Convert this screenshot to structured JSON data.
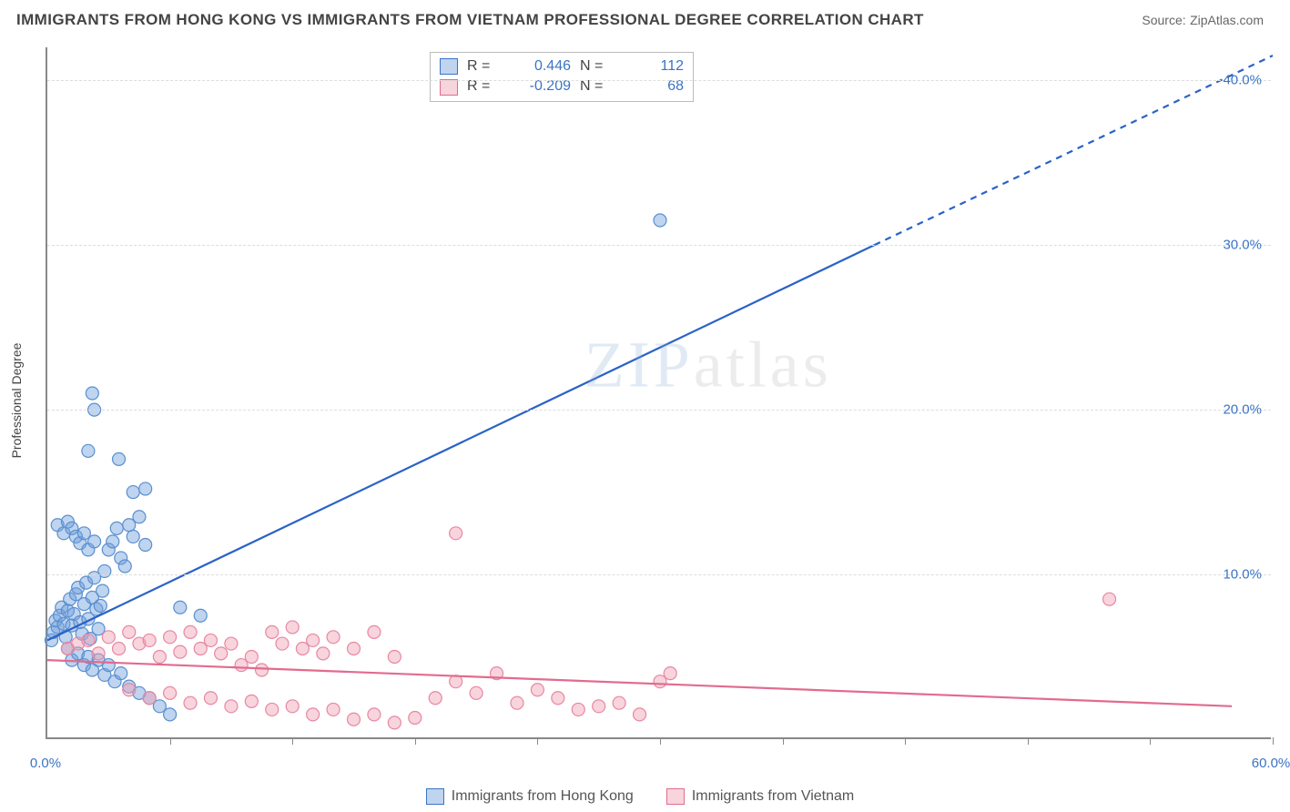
{
  "title": "IMMIGRANTS FROM HONG KONG VS IMMIGRANTS FROM VIETNAM PROFESSIONAL DEGREE CORRELATION CHART",
  "source_label": "Source:",
  "source_value": "ZipAtlas.com",
  "ylabel": "Professional Degree",
  "watermark_pre": "ZIP",
  "watermark_post": "atlas",
  "chart": {
    "type": "scatter-with-trendlines",
    "background_color": "#ffffff",
    "grid_color": "#dddddd",
    "axis_color": "#888888",
    "xlim": [
      0,
      60
    ],
    "ylim": [
      0,
      42
    ],
    "xtick_labels": [
      "0.0%",
      "60.0%"
    ],
    "xtick_positions": [
      0,
      60
    ],
    "ytick_labels": [
      "10.0%",
      "20.0%",
      "30.0%",
      "40.0%"
    ],
    "ytick_positions": [
      10,
      20,
      30,
      40
    ],
    "vtick_positions": [
      6,
      12,
      18,
      24,
      30,
      36,
      42,
      48,
      54,
      60
    ],
    "series": [
      {
        "name": "Immigrants from Hong Kong",
        "legend_label": "Immigrants from Hong Kong",
        "color_fill": "rgba(110,160,220,0.45)",
        "color_stroke": "#5a8fd0",
        "marker_radius": 7,
        "trend": {
          "solid": [
            [
              0,
              6
            ],
            [
              40.5,
              30
            ]
          ],
          "dashed": [
            [
              40.5,
              30
            ],
            [
              60,
              41.5
            ]
          ],
          "color": "#2a62c8",
          "width": 2.2
        },
        "stats": {
          "R": "0.446",
          "N": "112"
        },
        "points": [
          [
            0.2,
            6.0
          ],
          [
            0.3,
            6.5
          ],
          [
            0.4,
            7.2
          ],
          [
            0.5,
            6.8
          ],
          [
            0.6,
            7.5
          ],
          [
            0.7,
            8.0
          ],
          [
            0.8,
            7.0
          ],
          [
            0.9,
            6.2
          ],
          [
            1.0,
            7.8
          ],
          [
            1.1,
            8.5
          ],
          [
            1.2,
            6.9
          ],
          [
            1.3,
            7.6
          ],
          [
            1.4,
            8.8
          ],
          [
            1.5,
            9.2
          ],
          [
            1.6,
            7.1
          ],
          [
            1.7,
            6.4
          ],
          [
            1.8,
            8.2
          ],
          [
            1.9,
            9.5
          ],
          [
            2.0,
            7.3
          ],
          [
            2.1,
            6.1
          ],
          [
            2.2,
            8.6
          ],
          [
            2.3,
            9.8
          ],
          [
            2.4,
            7.9
          ],
          [
            2.5,
            6.7
          ],
          [
            2.6,
            8.1
          ],
          [
            2.7,
            9.0
          ],
          [
            2.8,
            10.2
          ],
          [
            3.0,
            11.5
          ],
          [
            3.2,
            12.0
          ],
          [
            3.4,
            12.8
          ],
          [
            3.6,
            11.0
          ],
          [
            3.8,
            10.5
          ],
          [
            4.0,
            13.0
          ],
          [
            4.2,
            12.3
          ],
          [
            4.5,
            13.5
          ],
          [
            4.8,
            11.8
          ],
          [
            1.0,
            5.5
          ],
          [
            1.2,
            4.8
          ],
          [
            1.5,
            5.2
          ],
          [
            1.8,
            4.5
          ],
          [
            2.0,
            5.0
          ],
          [
            2.2,
            4.2
          ],
          [
            2.5,
            4.8
          ],
          [
            2.8,
            3.9
          ],
          [
            3.0,
            4.5
          ],
          [
            3.3,
            3.5
          ],
          [
            3.6,
            4.0
          ],
          [
            4.0,
            3.2
          ],
          [
            4.5,
            2.8
          ],
          [
            5.0,
            2.5
          ],
          [
            5.5,
            2.0
          ],
          [
            6.0,
            1.5
          ],
          [
            6.5,
            8.0
          ],
          [
            7.5,
            7.5
          ],
          [
            2.0,
            17.5
          ],
          [
            2.2,
            21.0
          ],
          [
            2.3,
            20.0
          ],
          [
            3.5,
            17.0
          ],
          [
            4.2,
            15.0
          ],
          [
            4.8,
            15.2
          ],
          [
            0.5,
            13.0
          ],
          [
            0.8,
            12.5
          ],
          [
            1.0,
            13.2
          ],
          [
            1.2,
            12.8
          ],
          [
            1.4,
            12.3
          ],
          [
            1.6,
            11.9
          ],
          [
            1.8,
            12.5
          ],
          [
            2.0,
            11.5
          ],
          [
            2.3,
            12.0
          ],
          [
            30.0,
            31.5
          ]
        ]
      },
      {
        "name": "Immigrants from Vietnam",
        "legend_label": "Immigrants from Vietnam",
        "color_fill": "rgba(240,160,180,0.45)",
        "color_stroke": "#e887a3",
        "marker_radius": 7,
        "trend": {
          "solid": [
            [
              0,
              4.8
            ],
            [
              58,
              2.0
            ]
          ],
          "dashed": null,
          "color": "#e26b8e",
          "width": 2.2
        },
        "stats": {
          "R": "-0.209",
          "N": "68"
        },
        "points": [
          [
            1.0,
            5.5
          ],
          [
            1.5,
            5.8
          ],
          [
            2.0,
            6.0
          ],
          [
            2.5,
            5.2
          ],
          [
            3.0,
            6.2
          ],
          [
            3.5,
            5.5
          ],
          [
            4.0,
            6.5
          ],
          [
            4.5,
            5.8
          ],
          [
            5.0,
            6.0
          ],
          [
            5.5,
            5.0
          ],
          [
            6.0,
            6.2
          ],
          [
            6.5,
            5.3
          ],
          [
            7.0,
            6.5
          ],
          [
            7.5,
            5.5
          ],
          [
            8.0,
            6.0
          ],
          [
            8.5,
            5.2
          ],
          [
            9.0,
            5.8
          ],
          [
            9.5,
            4.5
          ],
          [
            10.0,
            5.0
          ],
          [
            10.5,
            4.2
          ],
          [
            11.0,
            6.5
          ],
          [
            11.5,
            5.8
          ],
          [
            12.0,
            6.8
          ],
          [
            12.5,
            5.5
          ],
          [
            13.0,
            6.0
          ],
          [
            13.5,
            5.2
          ],
          [
            14.0,
            6.2
          ],
          [
            15.0,
            5.5
          ],
          [
            16.0,
            6.5
          ],
          [
            17.0,
            5.0
          ],
          [
            4.0,
            3.0
          ],
          [
            5.0,
            2.5
          ],
          [
            6.0,
            2.8
          ],
          [
            7.0,
            2.2
          ],
          [
            8.0,
            2.5
          ],
          [
            9.0,
            2.0
          ],
          [
            10.0,
            2.3
          ],
          [
            11.0,
            1.8
          ],
          [
            12.0,
            2.0
          ],
          [
            13.0,
            1.5
          ],
          [
            14.0,
            1.8
          ],
          [
            15.0,
            1.2
          ],
          [
            16.0,
            1.5
          ],
          [
            17.0,
            1.0
          ],
          [
            18.0,
            1.3
          ],
          [
            19.0,
            2.5
          ],
          [
            20.0,
            3.5
          ],
          [
            21.0,
            2.8
          ],
          [
            22.0,
            4.0
          ],
          [
            23.0,
            2.2
          ],
          [
            24.0,
            3.0
          ],
          [
            25.0,
            2.5
          ],
          [
            26.0,
            1.8
          ],
          [
            27.0,
            2.0
          ],
          [
            28.0,
            2.2
          ],
          [
            29.0,
            1.5
          ],
          [
            30.0,
            3.5
          ],
          [
            30.5,
            4.0
          ],
          [
            20.0,
            12.5
          ],
          [
            52.0,
            8.5
          ]
        ]
      }
    ]
  }
}
